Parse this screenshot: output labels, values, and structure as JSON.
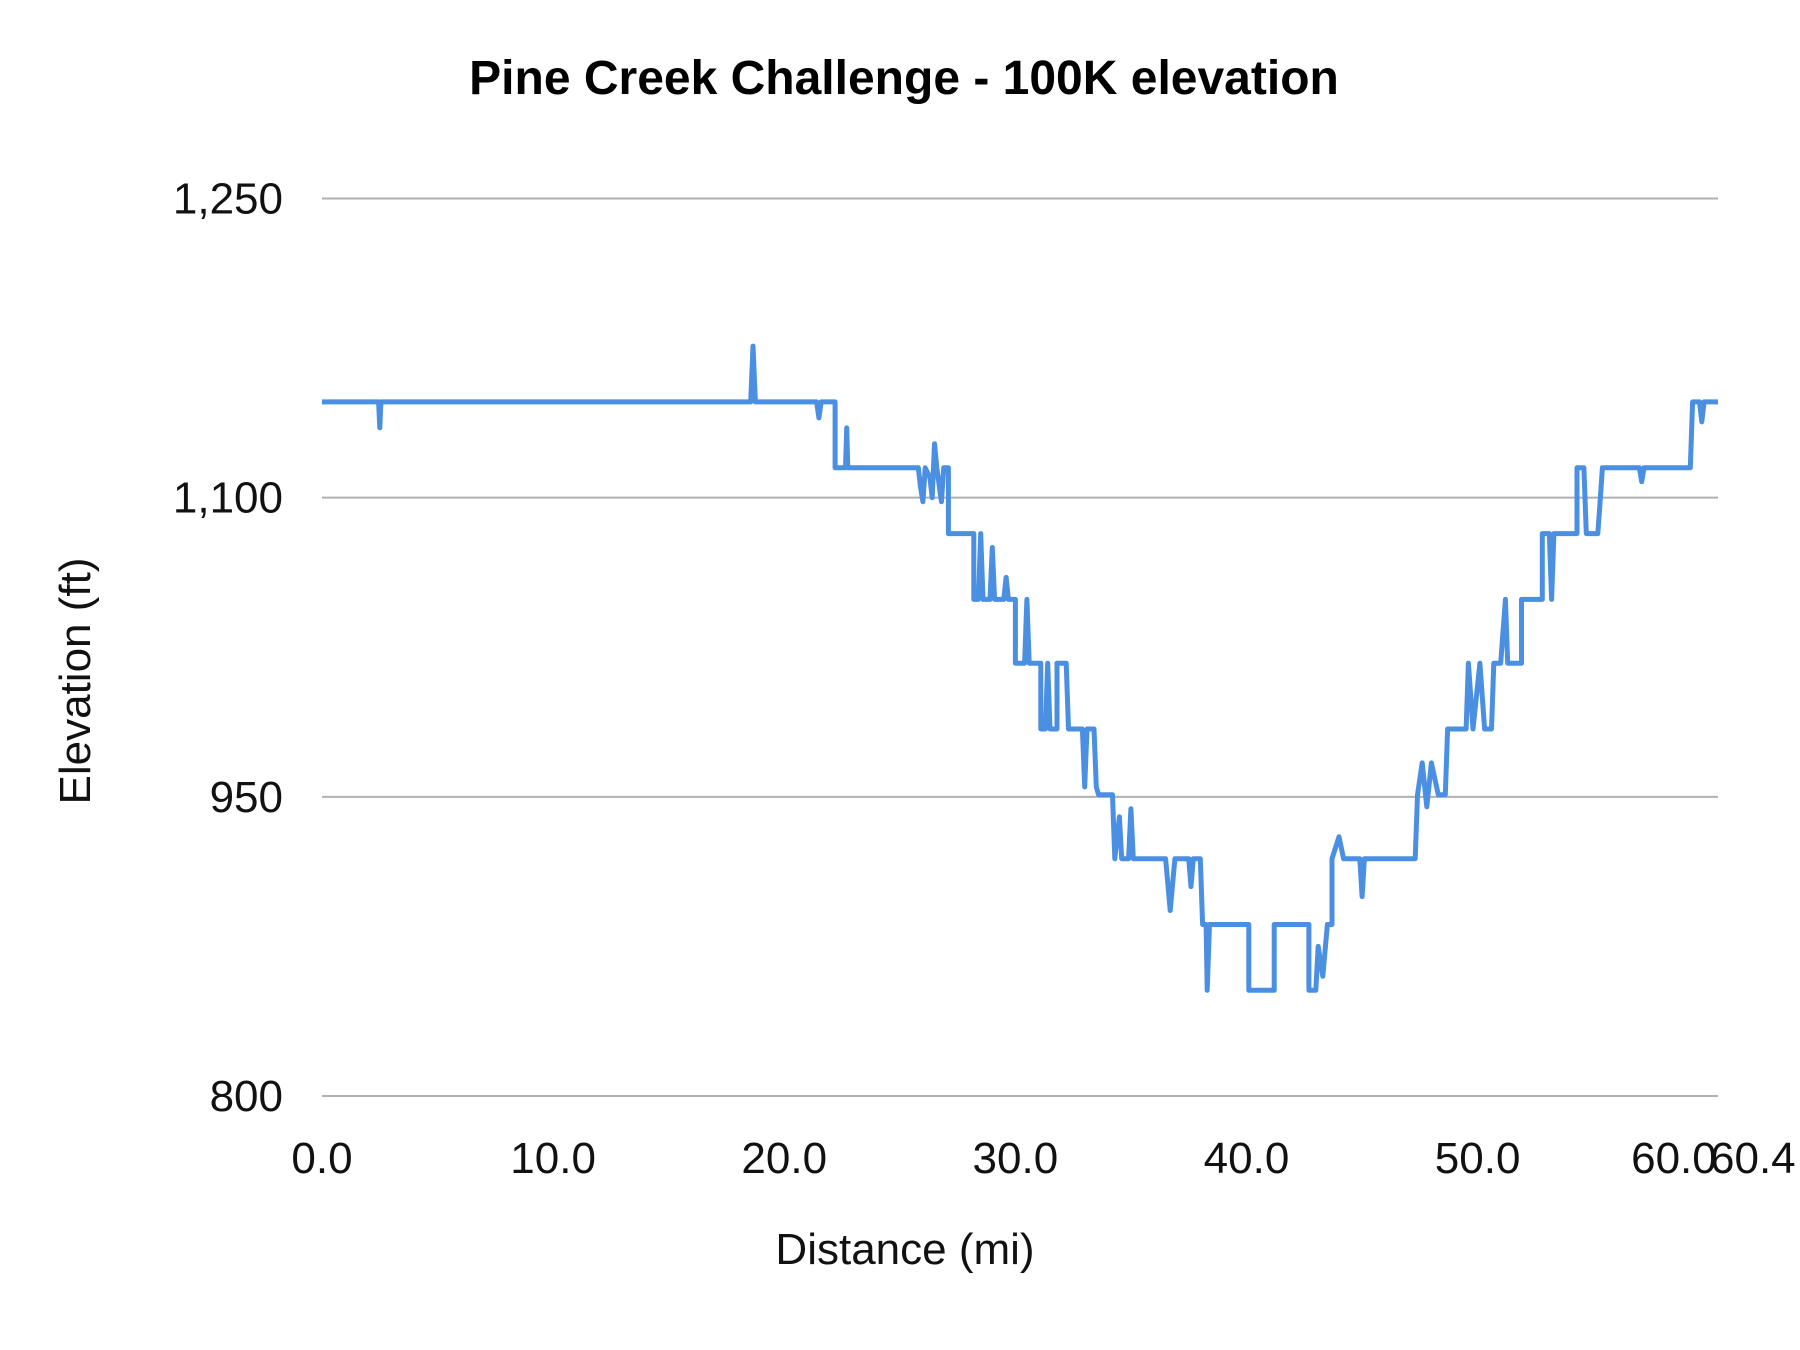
{
  "chart_data": {
    "type": "line",
    "title": "Pine Creek Challenge - 100K elevation",
    "xlabel": "Distance (mi)",
    "ylabel": "Elevation (ft)",
    "xlim": [
      0,
      60.4
    ],
    "ylim": [
      800,
      1250
    ],
    "x_ticks": [
      "0.0",
      "10.0",
      "20.0",
      "30.0",
      "40.0",
      "50.0",
      "60.0",
      "60.4"
    ],
    "x_tick_values": [
      0,
      10,
      20,
      30,
      40,
      50,
      60,
      60.4
    ],
    "y_ticks": [
      "800",
      "950",
      "1,100",
      "1,250"
    ],
    "y_tick_values": [
      800,
      950,
      1100,
      1250
    ],
    "grid": true,
    "line_color": "#4a8fe2",
    "series": [
      {
        "points": [
          [
            0,
            1148
          ],
          [
            2.45,
            1148
          ],
          [
            2.5,
            1135
          ],
          [
            2.55,
            1148
          ],
          [
            18.55,
            1148
          ],
          [
            18.65,
            1176
          ],
          [
            18.75,
            1148
          ],
          [
            21.4,
            1148
          ],
          [
            21.5,
            1140
          ],
          [
            21.6,
            1148
          ],
          [
            22.2,
            1148
          ],
          [
            22.2,
            1115
          ],
          [
            22.65,
            1115
          ],
          [
            22.7,
            1135
          ],
          [
            22.75,
            1115
          ],
          [
            25.8,
            1115
          ],
          [
            25.9,
            1105
          ],
          [
            26.0,
            1098
          ],
          [
            26.1,
            1115
          ],
          [
            26.3,
            1110
          ],
          [
            26.4,
            1100
          ],
          [
            26.5,
            1127
          ],
          [
            26.6,
            1115
          ],
          [
            26.8,
            1098
          ],
          [
            26.9,
            1115
          ],
          [
            27.1,
            1115
          ],
          [
            27.1,
            1082
          ],
          [
            28.2,
            1082
          ],
          [
            28.2,
            1049
          ],
          [
            28.4,
            1049
          ],
          [
            28.5,
            1082
          ],
          [
            28.6,
            1049
          ],
          [
            28.9,
            1049
          ],
          [
            29.0,
            1075
          ],
          [
            29.1,
            1049
          ],
          [
            29.5,
            1049
          ],
          [
            29.6,
            1060
          ],
          [
            29.7,
            1049
          ],
          [
            30.0,
            1049
          ],
          [
            30.0,
            1017
          ],
          [
            30.4,
            1017
          ],
          [
            30.5,
            1049
          ],
          [
            30.6,
            1017
          ],
          [
            30.7,
            1017
          ],
          [
            31.1,
            1017
          ],
          [
            31.1,
            984
          ],
          [
            31.3,
            984
          ],
          [
            31.4,
            1017
          ],
          [
            31.5,
            984
          ],
          [
            31.8,
            984
          ],
          [
            31.8,
            1017
          ],
          [
            32.2,
            1017
          ],
          [
            32.3,
            984
          ],
          [
            32.9,
            984
          ],
          [
            33.0,
            955
          ],
          [
            33.1,
            984
          ],
          [
            33.4,
            984
          ],
          [
            33.5,
            955
          ],
          [
            33.6,
            951
          ],
          [
            34.2,
            951
          ],
          [
            34.3,
            919
          ],
          [
            34.5,
            940
          ],
          [
            34.6,
            919
          ],
          [
            34.9,
            919
          ],
          [
            35.0,
            944
          ],
          [
            35.1,
            919
          ],
          [
            36.5,
            919
          ],
          [
            36.7,
            893
          ],
          [
            36.9,
            919
          ],
          [
            37.5,
            919
          ],
          [
            37.6,
            905
          ],
          [
            37.7,
            919
          ],
          [
            38.0,
            919
          ],
          [
            38.1,
            886
          ],
          [
            38.25,
            886
          ],
          [
            38.3,
            853
          ],
          [
            38.4,
            886
          ],
          [
            40.1,
            886
          ],
          [
            40.1,
            853
          ],
          [
            41.2,
            853
          ],
          [
            41.2,
            886
          ],
          [
            42.7,
            886
          ],
          [
            42.7,
            853
          ],
          [
            43.0,
            853
          ],
          [
            43.1,
            875
          ],
          [
            43.3,
            860
          ],
          [
            43.5,
            886
          ],
          [
            43.7,
            886
          ],
          [
            43.7,
            919
          ],
          [
            44.0,
            930
          ],
          [
            44.2,
            919
          ],
          [
            44.9,
            919
          ],
          [
            45.0,
            900
          ],
          [
            45.1,
            919
          ],
          [
            47.3,
            919
          ],
          [
            47.4,
            951
          ],
          [
            47.6,
            967
          ],
          [
            47.8,
            945
          ],
          [
            48.0,
            967
          ],
          [
            48.3,
            951
          ],
          [
            48.6,
            951
          ],
          [
            48.7,
            984
          ],
          [
            49.5,
            984
          ],
          [
            49.6,
            1017
          ],
          [
            49.8,
            984
          ],
          [
            50.1,
            1017
          ],
          [
            50.3,
            984
          ],
          [
            50.6,
            984
          ],
          [
            50.7,
            1017
          ],
          [
            51.0,
            1017
          ],
          [
            51.2,
            1049
          ],
          [
            51.3,
            1017
          ],
          [
            51.9,
            1017
          ],
          [
            51.9,
            1049
          ],
          [
            52.8,
            1049
          ],
          [
            52.8,
            1082
          ],
          [
            53.1,
            1082
          ],
          [
            53.2,
            1049
          ],
          [
            53.3,
            1082
          ],
          [
            54.3,
            1082
          ],
          [
            54.3,
            1115
          ],
          [
            54.6,
            1115
          ],
          [
            54.7,
            1082
          ],
          [
            55.2,
            1082
          ],
          [
            55.3,
            1098
          ],
          [
            55.4,
            1115
          ],
          [
            57.0,
            1115
          ],
          [
            57.1,
            1108
          ],
          [
            57.2,
            1115
          ],
          [
            59.2,
            1115
          ],
          [
            59.3,
            1148
          ],
          [
            59.6,
            1148
          ],
          [
            59.7,
            1138
          ],
          [
            59.8,
            1148
          ],
          [
            60.4,
            1148
          ]
        ]
      }
    ]
  }
}
